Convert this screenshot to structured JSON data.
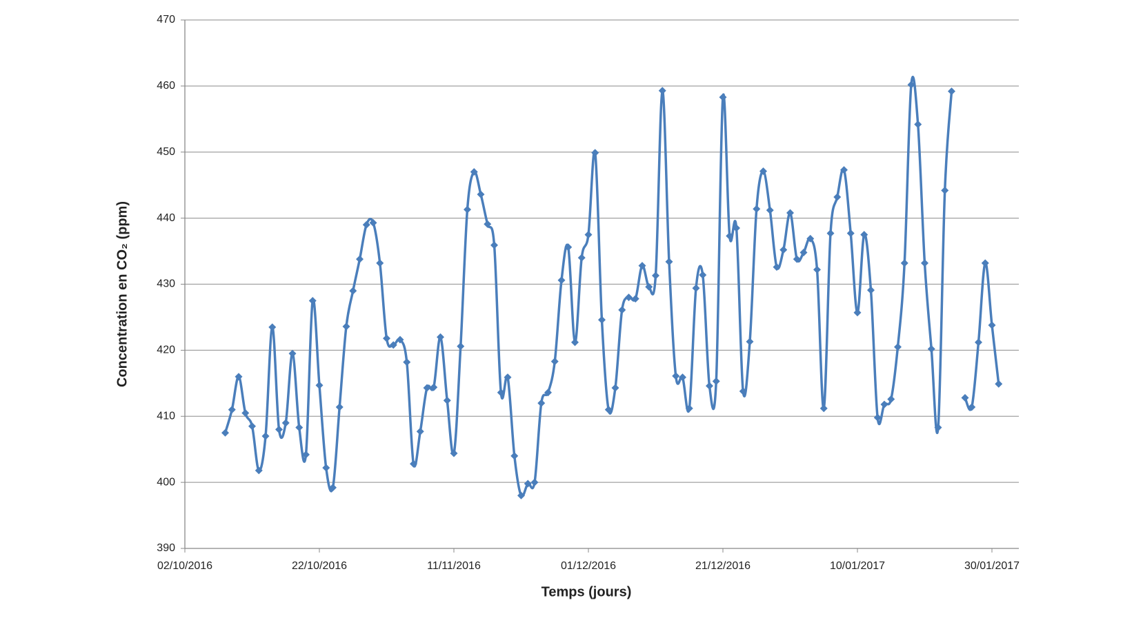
{
  "chart_data": {
    "type": "line",
    "xlabel": "Temps (jours)",
    "ylabel": "Concentration en CO₂ (ppm)",
    "x": [
      "2016-10-08",
      "2016-10-09",
      "2016-10-10",
      "2016-10-11",
      "2016-10-12",
      "2016-10-13",
      "2016-10-14",
      "2016-10-15",
      "2016-10-16",
      "2016-10-17",
      "2016-10-18",
      "2016-10-19",
      "2016-10-20",
      "2016-10-21",
      "2016-10-22",
      "2016-10-23",
      "2016-10-24",
      "2016-10-25",
      "2016-10-26",
      "2016-10-27",
      "2016-10-28",
      "2016-10-29",
      "2016-10-30",
      "2016-10-31",
      "2016-11-01",
      "2016-11-02",
      "2016-11-03",
      "2016-11-04",
      "2016-11-05",
      "2016-11-06",
      "2016-11-07",
      "2016-11-08",
      "2016-11-09",
      "2016-11-10",
      "2016-11-11",
      "2016-11-12",
      "2016-11-13",
      "2016-11-14",
      "2016-11-15",
      "2016-11-16",
      "2016-11-17",
      "2016-11-18",
      "2016-11-19",
      "2016-11-20",
      "2016-11-21",
      "2016-11-22",
      "2016-11-23",
      "2016-11-24",
      "2016-11-25",
      "2016-11-26",
      "2016-11-27",
      "2016-11-28",
      "2016-11-29",
      "2016-11-30",
      "2016-12-01",
      "2016-12-02",
      "2016-12-03",
      "2016-12-04",
      "2016-12-05",
      "2016-12-06",
      "2016-12-07",
      "2016-12-08",
      "2016-12-09",
      "2016-12-10",
      "2016-12-11",
      "2016-12-12",
      "2016-12-13",
      "2016-12-14",
      "2016-12-15",
      "2016-12-16",
      "2016-12-17",
      "2016-12-18",
      "2016-12-19",
      "2016-12-20",
      "2016-12-21",
      "2016-12-22",
      "2016-12-23",
      "2016-12-24",
      "2016-12-25",
      "2016-12-26",
      "2016-12-27",
      "2016-12-28",
      "2016-12-29",
      "2016-12-30",
      "2016-12-31",
      "2017-01-01",
      "2017-01-02",
      "2017-01-03",
      "2017-01-04",
      "2017-01-05",
      "2017-01-06",
      "2017-01-07",
      "2017-01-08",
      "2017-01-09",
      "2017-01-10",
      "2017-01-11",
      "2017-01-12",
      "2017-01-13",
      "2017-01-14",
      "2017-01-15",
      "2017-01-16",
      "2017-01-17",
      "2017-01-18",
      "2017-01-19",
      "2017-01-20",
      "2017-01-21",
      "2017-01-22",
      "2017-01-23",
      "2017-01-24",
      "2017-01-25",
      "2017-01-26",
      "2017-01-27",
      "2017-01-28",
      "2017-01-29",
      "2017-01-30",
      "2017-01-31"
    ],
    "series": [
      {
        "color": "#4a7ebb",
        "values": [
          407.5,
          411,
          416,
          410.5,
          408.5,
          401.8,
          407,
          423.5,
          408,
          409,
          419.5,
          408.3,
          404.2,
          427.5,
          414.7,
          402.2,
          399.2,
          411.4,
          423.6,
          429,
          433.8,
          439,
          439.3,
          433.2,
          421.8,
          420.8,
          421.6,
          418.2,
          402.8,
          407.7,
          414.3,
          414.4,
          422,
          412.4,
          404.4,
          420.6,
          441.3,
          447,
          443.6,
          439.1,
          435.9,
          413.6,
          415.9,
          404,
          398,
          399.8,
          400,
          412,
          413.6,
          418.3,
          430.6,
          435.6,
          421.2,
          434,
          437.5,
          449.9,
          424.6,
          411,
          414.3,
          426.1,
          428,
          427.8,
          432.8,
          429.6,
          431.3,
          459.3,
          433.4,
          416.1,
          415.9,
          411.2,
          429.4,
          431.4,
          414.6,
          415.3,
          458.3,
          437.3,
          438.5,
          413.8,
          421.3,
          441.4,
          447.1,
          441.2,
          432.6,
          435.2,
          440.8,
          433.8,
          434.8,
          436.9,
          432.2,
          411.2,
          437.7,
          443.2,
          447.3,
          437.7,
          425.7,
          437.5,
          429.1,
          409.8,
          411.8,
          412.6,
          420.5,
          433.2,
          460.2,
          454.2,
          433.2,
          420.2,
          408.3,
          444.2,
          459.2,
          null,
          412.8,
          411.4,
          421.2,
          433.2,
          423.8,
          414.9
        ]
      }
    ],
    "xlim": [
      "2016-10-02",
      "2017-02-03"
    ],
    "xticks": [
      {
        "value": "2016-10-02",
        "label": "02/10/2016"
      },
      {
        "value": "2016-10-22",
        "label": "22/10/2016"
      },
      {
        "value": "2016-11-11",
        "label": "11/11/2016"
      },
      {
        "value": "2016-12-01",
        "label": "01/12/2016"
      },
      {
        "value": "2016-12-21",
        "label": "21/12/2016"
      },
      {
        "value": "2017-01-10",
        "label": "10/01/2017"
      },
      {
        "value": "2017-01-30",
        "label": "30/01/2017"
      }
    ],
    "ylim": [
      390,
      470
    ],
    "yticks": [
      390,
      400,
      410,
      420,
      430,
      440,
      450,
      460,
      470
    ],
    "grid": true
  }
}
